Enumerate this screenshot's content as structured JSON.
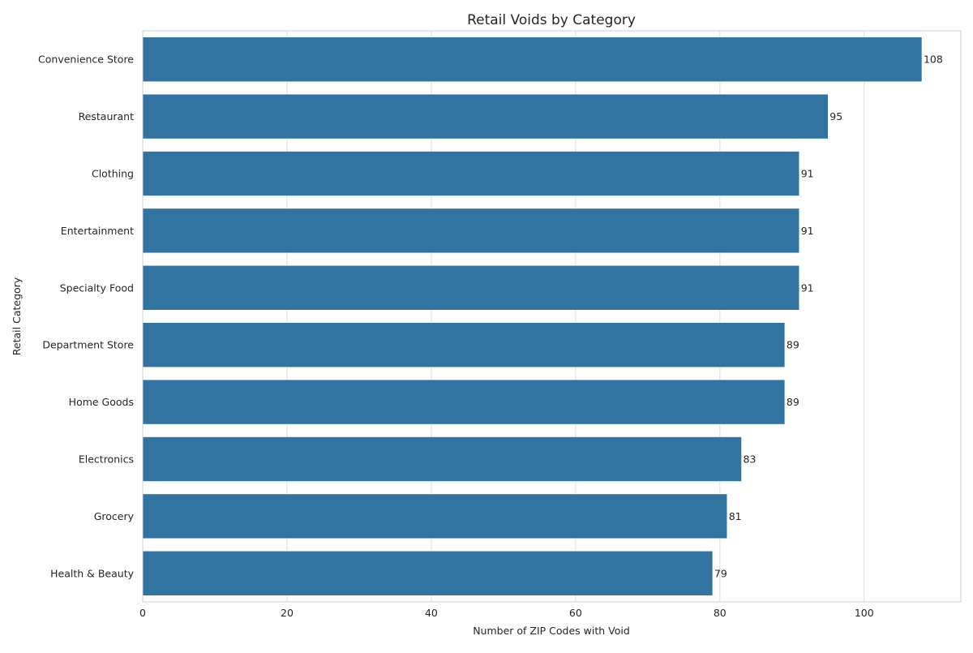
{
  "chart_data": {
    "type": "bar",
    "orientation": "horizontal",
    "title": "Retail Voids by Category",
    "xlabel": "Number of ZIP Codes with Void",
    "ylabel": "Retail Category",
    "categories": [
      "Convenience Store",
      "Restaurant",
      "Clothing",
      "Entertainment",
      "Specialty Food",
      "Department Store",
      "Home Goods",
      "Electronics",
      "Grocery",
      "Health & Beauty"
    ],
    "values": [
      108,
      95,
      91,
      91,
      91,
      89,
      89,
      83,
      81,
      79
    ],
    "value_labels": [
      "108",
      "95",
      "91",
      "91",
      "91",
      "89",
      "89",
      "83",
      "81",
      "79"
    ],
    "xlim": [
      0,
      113.4
    ],
    "xticks": [
      0,
      20,
      40,
      60,
      80,
      100
    ],
    "xtick_labels": [
      "0",
      "20",
      "40",
      "60",
      "80",
      "100"
    ],
    "grid": true,
    "bar_color": "#3274a1",
    "background": "#ffffff"
  }
}
